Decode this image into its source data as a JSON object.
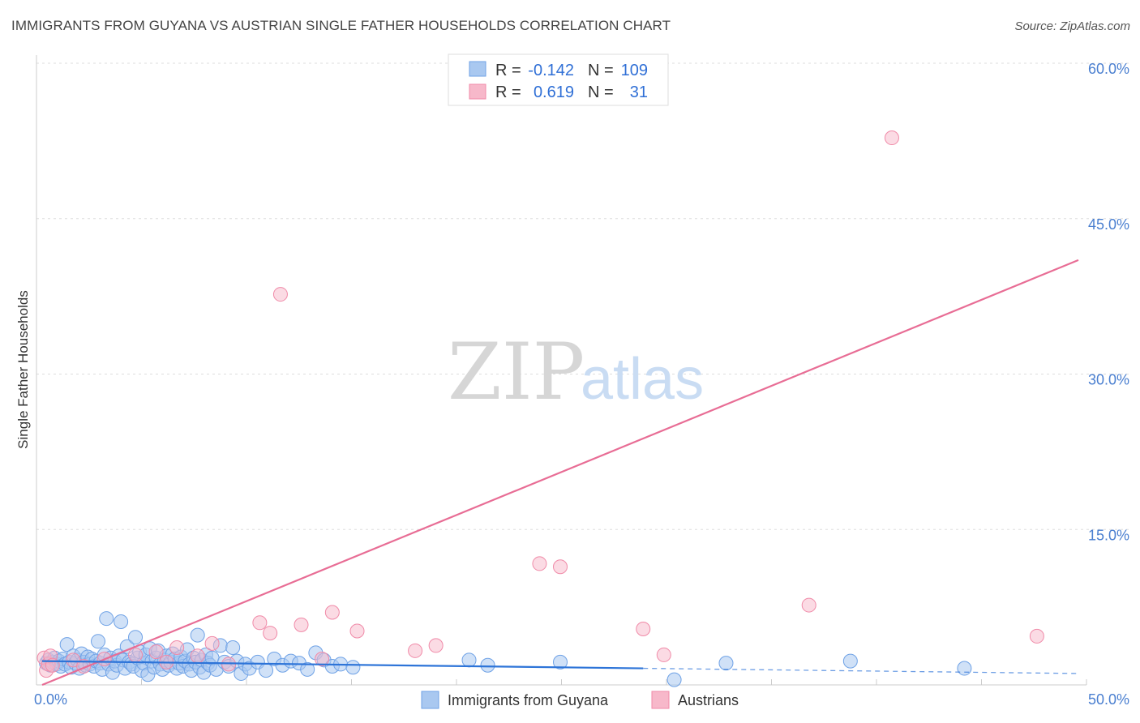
{
  "header": {
    "title": "IMMIGRANTS FROM GUYANA VS AUSTRIAN SINGLE FATHER HOUSEHOLDS CORRELATION CHART",
    "source": "Source: ZipAtlas.com"
  },
  "watermark": {
    "zip": "ZIP",
    "atlas": "atlas"
  },
  "legend_top": {
    "rows": [
      {
        "r_label": "R =",
        "r_value": "-0.142",
        "n_label": "N =",
        "n_value": "109",
        "color": "#a9c8f0"
      },
      {
        "r_label": "R =",
        "r_value": "0.619",
        "n_label": "N =",
        "n_value": "31",
        "color": "#f7b8ca"
      }
    ]
  },
  "legend_bottom": {
    "items": [
      {
        "label": "Immigrants from Guyana",
        "color": "#a9c8f0"
      },
      {
        "label": "Austrians",
        "color": "#f7b8ca"
      }
    ]
  },
  "chart_data": {
    "type": "scatter",
    "title": "IMMIGRANTS FROM GUYANA VS AUSTRIAN SINGLE FATHER HOUSEHOLDS CORRELATION CHART",
    "xlabel": "",
    "ylabel": "Single Father Households",
    "xlim": [
      0,
      50
    ],
    "ylim": [
      0,
      60
    ],
    "x_tick_labels": [
      "0.0%",
      "50.0%"
    ],
    "y_ticks": [
      15,
      30,
      45,
      60
    ],
    "y_tick_labels": [
      "15.0%",
      "30.0%",
      "45.0%",
      "60.0%"
    ],
    "grid": true,
    "colors": {
      "guyana": "#6fa2e6",
      "austrians": "#f08aa8",
      "guyana_line": "#2d74d8",
      "austrians_line": "#e86d95"
    },
    "series": [
      {
        "name": "Immigrants from Guyana",
        "trend": {
          "x0": 0,
          "y0": 2.3,
          "x1": 29,
          "y1": 1.6,
          "dash_to_x": 50,
          "dash_to_y": 1.1
        },
        "points": [
          [
            0.2,
            2.1
          ],
          [
            0.3,
            2.4
          ],
          [
            0.4,
            1.9
          ],
          [
            0.5,
            2.2
          ],
          [
            0.6,
            2.6
          ],
          [
            0.7,
            2.0
          ],
          [
            0.8,
            2.3
          ],
          [
            0.9,
            1.8
          ],
          [
            1.0,
            2.5
          ],
          [
            1.1,
            2.0
          ],
          [
            1.2,
            3.9
          ],
          [
            1.3,
            2.2
          ],
          [
            1.4,
            1.7
          ],
          [
            1.5,
            2.8
          ],
          [
            1.6,
            2.1
          ],
          [
            1.7,
            2.4
          ],
          [
            1.8,
            1.6
          ],
          [
            1.9,
            3.0
          ],
          [
            2.0,
            2.2
          ],
          [
            2.1,
            1.9
          ],
          [
            2.2,
            2.7
          ],
          [
            2.3,
            2.0
          ],
          [
            2.4,
            2.5
          ],
          [
            2.5,
            1.8
          ],
          [
            2.6,
            2.3
          ],
          [
            2.7,
            4.2
          ],
          [
            2.8,
            2.1
          ],
          [
            2.9,
            1.5
          ],
          [
            3.0,
            2.9
          ],
          [
            3.1,
            6.4
          ],
          [
            3.2,
            2.0
          ],
          [
            3.3,
            2.6
          ],
          [
            3.4,
            1.2
          ],
          [
            3.5,
            2.3
          ],
          [
            3.6,
            1.9
          ],
          [
            3.7,
            2.8
          ],
          [
            3.8,
            6.1
          ],
          [
            3.9,
            2.4
          ],
          [
            4.0,
            1.6
          ],
          [
            4.1,
            3.7
          ],
          [
            4.2,
            2.2
          ],
          [
            4.3,
            2.0
          ],
          [
            4.4,
            1.8
          ],
          [
            4.5,
            4.6
          ],
          [
            4.6,
            2.6
          ],
          [
            4.7,
            3.2
          ],
          [
            4.8,
            1.4
          ],
          [
            4.9,
            2.1
          ],
          [
            5.0,
            2.9
          ],
          [
            5.1,
            1.0
          ],
          [
            5.2,
            3.5
          ],
          [
            5.3,
            2.3
          ],
          [
            5.4,
            1.7
          ],
          [
            5.5,
            2.6
          ],
          [
            5.6,
            3.3
          ],
          [
            5.7,
            2.0
          ],
          [
            5.8,
            1.5
          ],
          [
            5.9,
            2.4
          ],
          [
            6.0,
            2.8
          ],
          [
            6.1,
            1.9
          ],
          [
            6.2,
            2.2
          ],
          [
            6.3,
            3.0
          ],
          [
            6.4,
            2.5
          ],
          [
            6.5,
            1.6
          ],
          [
            6.6,
            2.1
          ],
          [
            6.7,
            2.7
          ],
          [
            6.8,
            1.8
          ],
          [
            6.9,
            2.3
          ],
          [
            7.0,
            3.4
          ],
          [
            7.1,
            2.0
          ],
          [
            7.2,
            1.4
          ],
          [
            7.3,
            2.6
          ],
          [
            7.4,
            2.2
          ],
          [
            7.5,
            4.8
          ],
          [
            7.6,
            1.7
          ],
          [
            7.7,
            2.4
          ],
          [
            7.8,
            1.2
          ],
          [
            7.9,
            2.9
          ],
          [
            8.0,
            2.1
          ],
          [
            8.1,
            1.9
          ],
          [
            8.2,
            2.6
          ],
          [
            8.4,
            1.5
          ],
          [
            8.6,
            3.8
          ],
          [
            8.8,
            2.2
          ],
          [
            9.0,
            1.8
          ],
          [
            9.2,
            3.6
          ],
          [
            9.4,
            2.3
          ],
          [
            9.6,
            1.1
          ],
          [
            9.8,
            2.0
          ],
          [
            10.0,
            1.6
          ],
          [
            10.4,
            2.2
          ],
          [
            10.8,
            1.4
          ],
          [
            11.2,
            2.5
          ],
          [
            11.6,
            1.9
          ],
          [
            12.0,
            2.3
          ],
          [
            12.4,
            2.1
          ],
          [
            12.8,
            1.5
          ],
          [
            13.2,
            3.1
          ],
          [
            13.6,
            2.4
          ],
          [
            14.0,
            1.8
          ],
          [
            14.4,
            2.0
          ],
          [
            15.0,
            1.7
          ],
          [
            20.6,
            2.4
          ],
          [
            21.5,
            1.9
          ],
          [
            25.0,
            2.2
          ],
          [
            30.5,
            0.5
          ],
          [
            33.0,
            2.1
          ],
          [
            39.0,
            2.3
          ],
          [
            44.5,
            1.6
          ]
        ]
      },
      {
        "name": "Austrians",
        "trend": {
          "x0": 0,
          "y0": 0.0,
          "x1": 50,
          "y1": 41.0
        },
        "points": [
          [
            0.1,
            2.6
          ],
          [
            0.2,
            1.4
          ],
          [
            0.3,
            2.0
          ],
          [
            0.4,
            2.8
          ],
          [
            0.5,
            1.9
          ],
          [
            1.5,
            2.4
          ],
          [
            2.0,
            1.8
          ],
          [
            3.0,
            2.5
          ],
          [
            4.5,
            2.9
          ],
          [
            5.5,
            3.2
          ],
          [
            6.0,
            2.2
          ],
          [
            6.5,
            3.6
          ],
          [
            7.5,
            2.8
          ],
          [
            8.2,
            4.0
          ],
          [
            9.0,
            2.0
          ],
          [
            10.5,
            6.0
          ],
          [
            11.0,
            5.0
          ],
          [
            11.5,
            37.7
          ],
          [
            12.5,
            5.8
          ],
          [
            13.5,
            2.5
          ],
          [
            14.0,
            7.0
          ],
          [
            15.2,
            5.2
          ],
          [
            18.0,
            3.3
          ],
          [
            19.0,
            3.8
          ],
          [
            24.0,
            11.7
          ],
          [
            25.0,
            11.4
          ],
          [
            29.0,
            5.4
          ],
          [
            30.0,
            2.9
          ],
          [
            37.0,
            7.7
          ],
          [
            48.0,
            4.7
          ],
          [
            41.0,
            52.8
          ]
        ]
      }
    ]
  }
}
